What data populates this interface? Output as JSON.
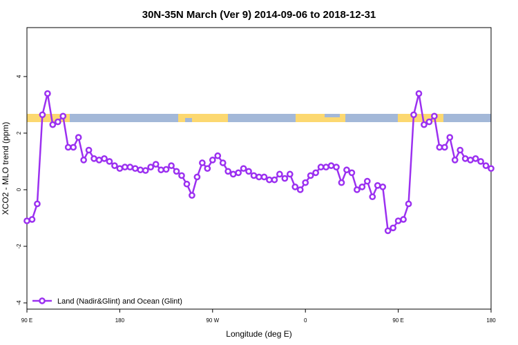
{
  "chart_data": {
    "type": "line",
    "title": "30N-35N March (Ver 9)   2014-09-06 to 2018-12-31",
    "x_label": "Longitude (deg E)",
    "y_label": "XCO2 - MLO trend (ppm)",
    "x": [
      90,
      95,
      100,
      105,
      110,
      115,
      120,
      125,
      130,
      135,
      140,
      145,
      150,
      155,
      160,
      165,
      170,
      175,
      180,
      185,
      190,
      195,
      200,
      205,
      210,
      215,
      220,
      225,
      230,
      235,
      240,
      245,
      250,
      255,
      260,
      265,
      270,
      275,
      280,
      285,
      290,
      295,
      300,
      305,
      310,
      315,
      320,
      325,
      330,
      335,
      340,
      345,
      350,
      355,
      360,
      365,
      370,
      375,
      380,
      385,
      390,
      395,
      400,
      405,
      410,
      415,
      420,
      425,
      430,
      435,
      440,
      445,
      450,
      455,
      460,
      465,
      470,
      475,
      480,
      485,
      490,
      495,
      500,
      505,
      510,
      515,
      520,
      525,
      530,
      535,
      540
    ],
    "series": [
      {
        "name": "Land (Nadir&Glint) and Ocean (Glint)",
        "color": "#9b30f0",
        "values": [
          -1.1,
          -1.05,
          -0.5,
          2.65,
          3.4,
          2.3,
          2.4,
          2.6,
          1.5,
          1.5,
          1.85,
          1.05,
          1.4,
          1.1,
          1.05,
          1.1,
          1.0,
          0.85,
          0.75,
          0.8,
          0.8,
          0.75,
          0.7,
          0.68,
          0.8,
          0.9,
          0.7,
          0.72,
          0.85,
          0.65,
          0.5,
          0.2,
          -0.2,
          0.45,
          0.95,
          0.75,
          1.05,
          1.2,
          0.95,
          0.65,
          0.55,
          0.6,
          0.75,
          0.65,
          0.5,
          0.45,
          0.45,
          0.35,
          0.35,
          0.55,
          0.4,
          0.55,
          0.1,
          0.0,
          0.25,
          0.5,
          0.6,
          0.8,
          0.8,
          0.85,
          0.8,
          0.25,
          0.7,
          0.6,
          0.0,
          0.1,
          0.3,
          -0.25,
          0.15,
          0.1,
          -1.45,
          -1.35,
          -1.1,
          -1.05,
          -0.5,
          2.65,
          3.4,
          2.3,
          2.4,
          2.6,
          1.5,
          1.5,
          1.85,
          1.05,
          1.4,
          1.1,
          1.05,
          1.1,
          1.0,
          0.85,
          0.75
        ]
      }
    ],
    "xlim": [
      90,
      540
    ],
    "xticks": [
      {
        "value": 90,
        "label": "90 E"
      },
      180,
      {
        "value": 270,
        "label": "90 W"
      },
      {
        "value": 360,
        "label": "0"
      },
      {
        "value": 450,
        "label": "90 E"
      },
      {
        "value": 540,
        "label": "180"
      }
    ],
    "ylim": [
      -4.22,
      5.73
    ],
    "yticks": [
      -4,
      -2,
      0,
      2,
      4
    ],
    "legend": "bottom-left"
  }
}
